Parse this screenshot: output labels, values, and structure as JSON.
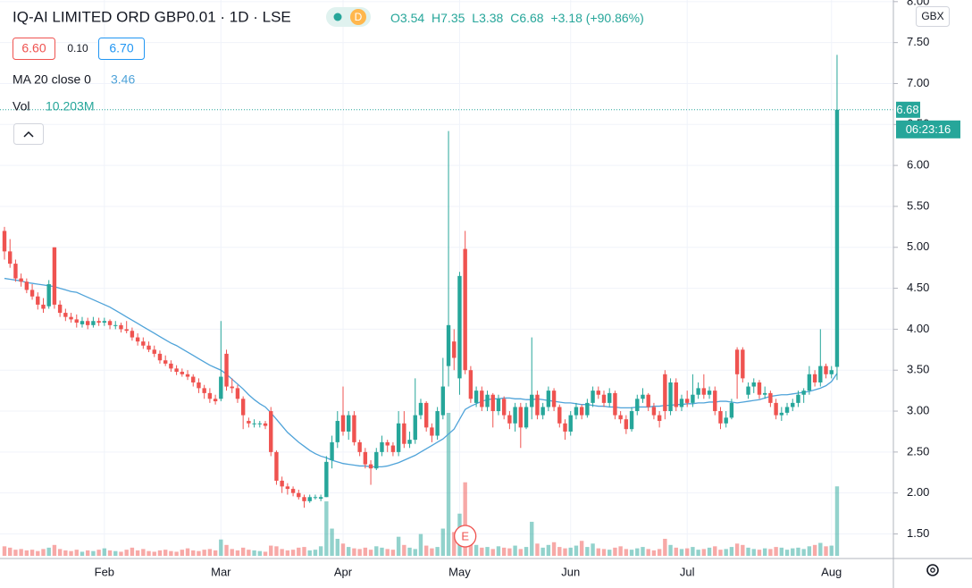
{
  "chart_data": {
    "type": "candlestick",
    "title": "IQ-AI LIMITED ORD GBP0.01 · 1D · LSE",
    "badge": "D",
    "ohlc_legend": [
      "O3.54",
      "H7.35",
      "L3.38",
      "C6.68",
      "+3.18 (+90.86%)"
    ],
    "bid": "6.60",
    "spread": "0.10",
    "ask": "6.70",
    "ma_name": "MA 20 close 0",
    "volume_name": "Vol",
    "volume_label": "10.203M",
    "countdown": "06:23:16",
    "currency": "GBX",
    "earnings_marker": "E",
    "categories": [
      null,
      null,
      null,
      null,
      null,
      null,
      null,
      null,
      null,
      null,
      null,
      null,
      null,
      null,
      null,
      null,
      null,
      null,
      "Feb",
      null,
      null,
      null,
      null,
      null,
      null,
      null,
      null,
      null,
      null,
      null,
      null,
      null,
      null,
      null,
      null,
      null,
      null,
      null,
      null,
      "Mar",
      null,
      null,
      null,
      null,
      null,
      null,
      null,
      null,
      null,
      null,
      null,
      null,
      null,
      null,
      null,
      null,
      null,
      null,
      null,
      null,
      null,
      "Apr",
      null,
      null,
      null,
      null,
      null,
      null,
      null,
      null,
      null,
      null,
      null,
      null,
      null,
      null,
      null,
      null,
      null,
      null,
      null,
      null,
      "May",
      null,
      null,
      null,
      null,
      null,
      null,
      null,
      null,
      null,
      null,
      null,
      null,
      null,
      null,
      null,
      null,
      null,
      null,
      null,
      "Jun",
      null,
      null,
      null,
      null,
      null,
      null,
      null,
      null,
      null,
      null,
      null,
      null,
      null,
      null,
      null,
      null,
      null,
      null,
      null,
      null,
      "Jul",
      null,
      null,
      null,
      null,
      null,
      null,
      null,
      null,
      null,
      null,
      null,
      null,
      null,
      null,
      null,
      null,
      null,
      null,
      null,
      null,
      null,
      null,
      null,
      null,
      null,
      "Aug",
      null
    ],
    "candles": [
      [
        5.2,
        5.25,
        4.85,
        4.95
      ],
      [
        4.95,
        5.1,
        4.75,
        4.8
      ],
      [
        4.8,
        4.85,
        4.58,
        4.62
      ],
      [
        4.62,
        4.68,
        4.52,
        4.58
      ],
      [
        4.58,
        4.62,
        4.44,
        4.48
      ],
      [
        4.48,
        4.55,
        4.36,
        4.4
      ],
      [
        4.4,
        4.45,
        4.24,
        4.3
      ],
      [
        4.3,
        4.38,
        4.2,
        4.25
      ],
      [
        4.28,
        4.6,
        4.25,
        4.55
      ],
      [
        5.0,
        5.0,
        4.25,
        4.3
      ],
      [
        4.3,
        4.35,
        4.15,
        4.2
      ],
      [
        4.2,
        4.25,
        4.1,
        4.15
      ],
      [
        4.15,
        4.2,
        4.08,
        4.12
      ],
      [
        4.12,
        4.18,
        4.02,
        4.08
      ],
      [
        4.06,
        4.15,
        4.02,
        4.1
      ],
      [
        4.1,
        4.14,
        4.0,
        4.05
      ],
      [
        4.05,
        4.15,
        4.02,
        4.1
      ],
      [
        4.1,
        4.14,
        4.04,
        4.08
      ],
      [
        4.08,
        4.14,
        4.04,
        4.1
      ],
      [
        4.1,
        4.12,
        4.0,
        4.05
      ],
      [
        4.05,
        4.1,
        4.0,
        4.05
      ],
      [
        4.05,
        4.08,
        3.96,
        4.0
      ],
      [
        4.0,
        4.1,
        3.95,
        3.98
      ],
      [
        3.98,
        4.02,
        3.86,
        3.9
      ],
      [
        3.9,
        3.95,
        3.8,
        3.85
      ],
      [
        3.85,
        3.9,
        3.76,
        3.8
      ],
      [
        3.8,
        3.85,
        3.72,
        3.75
      ],
      [
        3.75,
        3.8,
        3.66,
        3.7
      ],
      [
        3.7,
        3.74,
        3.58,
        3.62
      ],
      [
        3.62,
        3.68,
        3.55,
        3.58
      ],
      [
        3.58,
        3.62,
        3.48,
        3.52
      ],
      [
        3.52,
        3.56,
        3.44,
        3.48
      ],
      [
        3.48,
        3.52,
        3.42,
        3.45
      ],
      [
        3.45,
        3.5,
        3.38,
        3.42
      ],
      [
        3.42,
        3.45,
        3.3,
        3.35
      ],
      [
        3.35,
        3.4,
        3.22,
        3.28
      ],
      [
        3.28,
        3.32,
        3.15,
        3.22
      ],
      [
        3.22,
        3.28,
        3.1,
        3.15
      ],
      [
        3.15,
        3.2,
        3.08,
        3.12
      ],
      [
        3.15,
        4.1,
        3.12,
        3.42
      ],
      [
        3.7,
        3.75,
        3.25,
        3.3
      ],
      [
        3.3,
        3.4,
        3.22,
        3.28
      ],
      [
        3.28,
        3.32,
        3.1,
        3.15
      ],
      [
        3.15,
        3.18,
        2.78,
        2.95
      ],
      [
        2.88,
        2.92,
        2.8,
        2.85
      ],
      [
        2.85,
        2.9,
        2.8,
        2.85
      ],
      [
        2.85,
        2.88,
        2.8,
        2.85
      ],
      [
        2.85,
        2.88,
        2.78,
        2.82
      ],
      [
        3.0,
        3.05,
        2.45,
        2.5
      ],
      [
        2.5,
        2.52,
        2.1,
        2.15
      ],
      [
        2.15,
        2.2,
        2.0,
        2.08
      ],
      [
        2.08,
        2.12,
        1.98,
        2.05
      ],
      [
        2.05,
        2.08,
        1.96,
        2.0
      ],
      [
        2.0,
        2.04,
        1.92,
        1.95
      ],
      [
        1.95,
        1.98,
        1.82,
        1.9
      ],
      [
        1.9,
        1.98,
        1.88,
        1.95
      ],
      [
        1.95,
        1.98,
        1.92,
        1.95
      ],
      [
        1.93,
        1.98,
        1.9,
        1.95
      ],
      [
        1.95,
        2.45,
        1.95,
        2.38
      ],
      [
        2.4,
        2.7,
        2.3,
        2.62
      ],
      [
        2.62,
        3.0,
        2.55,
        2.88
      ],
      [
        2.95,
        3.3,
        2.7,
        2.75
      ],
      [
        2.75,
        3.0,
        2.65,
        2.95
      ],
      [
        2.95,
        3.0,
        2.58,
        2.62
      ],
      [
        2.62,
        2.65,
        2.45,
        2.5
      ],
      [
        2.5,
        2.55,
        2.3,
        2.35
      ],
      [
        2.35,
        2.4,
        2.1,
        2.3
      ],
      [
        2.3,
        2.55,
        2.28,
        2.5
      ],
      [
        2.5,
        2.7,
        2.45,
        2.62
      ],
      [
        2.62,
        2.65,
        2.5,
        2.58
      ],
      [
        2.58,
        2.62,
        2.45,
        2.5
      ],
      [
        2.5,
        3.0,
        2.45,
        2.85
      ],
      [
        2.85,
        3.0,
        2.55,
        2.6
      ],
      [
        2.6,
        2.75,
        2.55,
        2.65
      ],
      [
        2.65,
        3.4,
        2.6,
        2.95
      ],
      [
        2.95,
        3.15,
        2.9,
        3.1
      ],
      [
        3.1,
        3.12,
        2.75,
        2.8
      ],
      [
        2.8,
        2.85,
        2.62,
        2.7
      ],
      [
        2.7,
        3.05,
        2.65,
        3.0
      ],
      [
        2.95,
        3.65,
        2.9,
        3.3
      ],
      [
        3.55,
        6.42,
        3.3,
        4.05
      ],
      [
        3.85,
        4.0,
        3.5,
        3.65
      ],
      [
        3.4,
        4.7,
        3.2,
        4.65
      ],
      [
        4.98,
        5.2,
        3.45,
        3.5
      ],
      [
        3.5,
        3.55,
        3.1,
        3.15
      ],
      [
        3.1,
        3.3,
        3.05,
        3.25
      ],
      [
        3.25,
        3.3,
        3.0,
        3.05
      ],
      [
        3.05,
        3.25,
        3.0,
        3.2
      ],
      [
        3.2,
        3.22,
        2.8,
        3.0
      ],
      [
        3.0,
        3.2,
        2.95,
        3.15
      ],
      [
        3.15,
        3.18,
        2.9,
        2.95
      ],
      [
        2.95,
        3.0,
        2.78,
        2.85
      ],
      [
        2.85,
        3.1,
        2.75,
        3.05
      ],
      [
        3.05,
        3.1,
        2.55,
        2.8
      ],
      [
        2.8,
        3.1,
        2.78,
        3.05
      ],
      [
        3.05,
        3.9,
        2.9,
        3.2
      ],
      [
        3.2,
        3.25,
        2.9,
        2.95
      ],
      [
        2.95,
        3.1,
        2.9,
        3.05
      ],
      [
        3.05,
        3.3,
        3.0,
        3.25
      ],
      [
        3.25,
        3.28,
        3.0,
        3.05
      ],
      [
        3.05,
        3.08,
        2.8,
        2.85
      ],
      [
        2.85,
        2.9,
        2.65,
        2.75
      ],
      [
        2.75,
        3.0,
        2.7,
        2.95
      ],
      [
        2.95,
        3.1,
        2.9,
        3.05
      ],
      [
        3.05,
        3.08,
        2.9,
        2.95
      ],
      [
        2.95,
        3.15,
        2.92,
        3.1
      ],
      [
        3.1,
        3.3,
        3.05,
        3.25
      ],
      [
        3.25,
        3.3,
        3.15,
        3.2
      ],
      [
        3.2,
        3.25,
        3.05,
        3.1
      ],
      [
        3.1,
        3.28,
        3.05,
        3.22
      ],
      [
        3.22,
        3.25,
        2.9,
        2.95
      ],
      [
        2.95,
        3.0,
        2.85,
        2.9
      ],
      [
        2.9,
        2.95,
        2.72,
        2.78
      ],
      [
        2.78,
        3.05,
        2.75,
        3.0
      ],
      [
        3.0,
        3.2,
        2.95,
        3.15
      ],
      [
        3.15,
        3.28,
        3.1,
        3.2
      ],
      [
        3.2,
        3.22,
        3.0,
        3.05
      ],
      [
        3.05,
        3.1,
        2.9,
        2.95
      ],
      [
        2.95,
        3.0,
        2.8,
        2.88
      ],
      [
        3.45,
        3.5,
        2.9,
        3.0
      ],
      [
        3.0,
        3.4,
        2.95,
        3.35
      ],
      [
        3.35,
        3.4,
        3.0,
        3.05
      ],
      [
        3.05,
        3.2,
        3.0,
        3.15
      ],
      [
        3.15,
        3.25,
        3.05,
        3.1
      ],
      [
        3.1,
        3.45,
        3.05,
        3.2
      ],
      [
        3.2,
        3.35,
        3.15,
        3.28
      ],
      [
        3.28,
        3.45,
        3.15,
        3.2
      ],
      [
        3.2,
        3.3,
        3.15,
        3.25
      ],
      [
        3.25,
        3.3,
        2.95,
        3.0
      ],
      [
        3.0,
        3.05,
        2.78,
        2.85
      ],
      [
        2.85,
        3.0,
        2.8,
        2.92
      ],
      [
        2.92,
        3.15,
        2.9,
        3.1
      ],
      [
        3.75,
        3.78,
        3.15,
        3.45
      ],
      [
        3.75,
        3.78,
        3.35,
        3.4
      ],
      [
        3.2,
        3.35,
        3.15,
        3.3
      ],
      [
        3.3,
        3.4,
        3.22,
        3.35
      ],
      [
        3.35,
        3.38,
        3.15,
        3.2
      ],
      [
        3.2,
        3.3,
        3.15,
        3.22
      ],
      [
        3.22,
        3.25,
        3.05,
        3.1
      ],
      [
        3.1,
        3.15,
        2.9,
        2.95
      ],
      [
        2.95,
        3.05,
        2.88,
        2.98
      ],
      [
        2.98,
        3.1,
        2.95,
        3.05
      ],
      [
        3.05,
        3.15,
        3.0,
        3.1
      ],
      [
        3.1,
        3.25,
        3.05,
        3.2
      ],
      [
        3.2,
        3.28,
        3.1,
        3.25
      ],
      [
        3.25,
        3.55,
        3.2,
        3.45
      ],
      [
        3.45,
        3.5,
        3.3,
        3.35
      ],
      [
        3.35,
        4.0,
        3.3,
        3.55
      ],
      [
        3.55,
        3.58,
        3.4,
        3.45
      ],
      [
        3.45,
        3.55,
        3.4,
        3.5
      ],
      [
        3.54,
        7.35,
        3.38,
        6.68
      ]
    ],
    "volumes": [
      1.4,
      1.2,
      0.9,
      1.0,
      0.8,
      0.9,
      0.7,
      1.0,
      1.2,
      1.6,
      1.0,
      0.8,
      0.7,
      0.9,
      0.6,
      0.8,
      0.7,
      0.9,
      1.1,
      0.8,
      0.7,
      0.6,
      0.9,
      1.2,
      0.8,
      1.0,
      0.7,
      0.6,
      0.8,
      0.9,
      0.7,
      0.6,
      0.9,
      1.1,
      0.8,
      0.7,
      0.9,
      1.0,
      0.8,
      2.4,
      1.6,
      1.0,
      0.8,
      1.2,
      0.9,
      0.8,
      0.7,
      0.6,
      1.5,
      1.4,
      1.0,
      0.8,
      0.9,
      1.2,
      1.3,
      0.8,
      0.9,
      1.4,
      8.0,
      4.0,
      2.5,
      1.8,
      1.3,
      1.1,
      1.0,
      1.2,
      0.9,
      1.4,
      1.2,
      1.0,
      0.9,
      2.8,
      1.6,
      1.2,
      1.0,
      3.2,
      1.5,
      1.1,
      1.3,
      4.0,
      21.0,
      3.5,
      6.2,
      10.8,
      2.5,
      1.6,
      1.2,
      1.3,
      1.0,
      1.4,
      1.2,
      1.1,
      1.5,
      1.0,
      1.3,
      5.0,
      1.8,
      1.2,
      1.6,
      2.0,
      1.3,
      1.1,
      1.2,
      1.5,
      2.2,
      1.3,
      1.8,
      1.1,
      1.0,
      0.9,
      1.2,
      1.4,
      1.0,
      0.9,
      1.1,
      1.3,
      1.0,
      0.8,
      1.0,
      2.5,
      1.6,
      1.2,
      1.0,
      1.1,
      1.3,
      0.9,
      1.0,
      1.2,
      1.4,
      0.9,
      1.0,
      1.3,
      1.8,
      1.6,
      1.2,
      1.0,
      0.9,
      1.1,
      1.0,
      1.3,
      1.2,
      0.9,
      1.1,
      1.2,
      1.0,
      1.4,
      1.6,
      1.9,
      1.4,
      1.5,
      10.203
    ],
    "ma": [
      4.62,
      4.61,
      4.6,
      4.59,
      4.57,
      4.56,
      4.55,
      4.54,
      4.53,
      4.52,
      4.5,
      4.48,
      4.46,
      4.45,
      4.42,
      4.39,
      4.36,
      4.33,
      4.3,
      4.27,
      4.23,
      4.19,
      4.15,
      4.11,
      4.07,
      4.03,
      3.99,
      3.95,
      3.91,
      3.87,
      3.83,
      3.8,
      3.76,
      3.72,
      3.68,
      3.64,
      3.6,
      3.56,
      3.53,
      3.5,
      3.45,
      3.39,
      3.33,
      3.27,
      3.2,
      3.14,
      3.09,
      3.05,
      2.98,
      2.9,
      2.82,
      2.74,
      2.68,
      2.62,
      2.57,
      2.52,
      2.48,
      2.45,
      2.43,
      2.4,
      2.38,
      2.36,
      2.35,
      2.34,
      2.33,
      2.33,
      2.32,
      2.32,
      2.32,
      2.33,
      2.35,
      2.37,
      2.4,
      2.43,
      2.46,
      2.5,
      2.54,
      2.58,
      2.62,
      2.66,
      2.72,
      2.78,
      2.9,
      3.02,
      3.06,
      3.09,
      3.12,
      3.14,
      3.15,
      3.15,
      3.16,
      3.16,
      3.15,
      3.15,
      3.14,
      3.14,
      3.15,
      3.14,
      3.13,
      3.12,
      3.11,
      3.1,
      3.1,
      3.09,
      3.08,
      3.08,
      3.07,
      3.06,
      3.06,
      3.05,
      3.05,
      3.04,
      3.04,
      3.04,
      3.05,
      3.05,
      3.05,
      3.06,
      3.06,
      3.07,
      3.07,
      3.08,
      3.08,
      3.09,
      3.09,
      3.1,
      3.1,
      3.11,
      3.11,
      3.12,
      3.12,
      3.11,
      3.1,
      3.11,
      3.12,
      3.13,
      3.14,
      3.16,
      3.18,
      3.19,
      3.2,
      3.2,
      3.21,
      3.22,
      3.23,
      3.24,
      3.26,
      3.28,
      3.31,
      3.36,
      3.46
    ],
    "colors": {
      "up": "#26a69a",
      "down": "#ef5350",
      "ma": "#4fa3d9"
    },
    "ylim": [
      1.2,
      8.02
    ],
    "yticks": [
      {
        "value": 1.5,
        "label": "1.50"
      },
      {
        "value": 2.0,
        "label": "2.00"
      },
      {
        "value": 2.5,
        "label": "2.50"
      },
      {
        "value": 3.0,
        "label": "3.00"
      },
      {
        "value": 3.5,
        "label": "3.50"
      },
      {
        "value": 4.0,
        "label": "4.00"
      },
      {
        "value": 4.5,
        "label": "4.50"
      },
      {
        "value": 5.0,
        "label": "5.00"
      },
      {
        "value": 5.5,
        "label": "5.50"
      },
      {
        "value": 6.0,
        "label": "6.00"
      },
      {
        "value": 6.5,
        "label": "6.50"
      },
      {
        "value": 7.0,
        "label": "7.00"
      },
      {
        "value": 7.5,
        "label": "7.50"
      },
      {
        "value": 8.0,
        "label": "8.00"
      }
    ],
    "grid": true
  }
}
